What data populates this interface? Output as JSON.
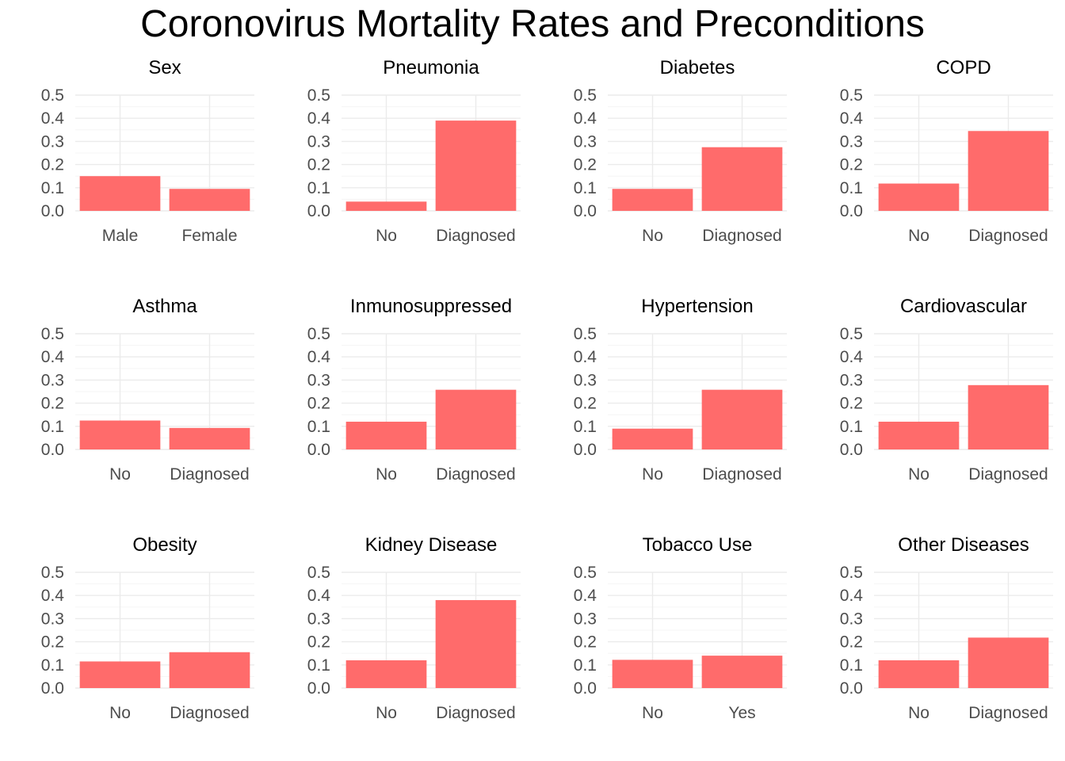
{
  "title": "Coronovirus Mortality Rates and Preconditions",
  "colors": {
    "bar": "#ff6b6b",
    "grid_major": "#ebebeb",
    "grid_minor": "#f5f5f5",
    "tick_text": "#4d4d4d",
    "title_text": "#000000"
  },
  "chart_data": [
    {
      "type": "bar",
      "title": "Sex",
      "categories": [
        "Male",
        "Female"
      ],
      "values": [
        0.15,
        0.095
      ],
      "ylim": [
        0,
        0.5
      ],
      "yticks": [
        "0.0",
        "0.1",
        "0.2",
        "0.3",
        "0.4",
        "0.5"
      ]
    },
    {
      "type": "bar",
      "title": "Pneumonia",
      "categories": [
        "No",
        "Diagnosed"
      ],
      "values": [
        0.04,
        0.39
      ],
      "ylim": [
        0,
        0.5
      ],
      "yticks": [
        "0.0",
        "0.1",
        "0.2",
        "0.3",
        "0.4",
        "0.5"
      ]
    },
    {
      "type": "bar",
      "title": "Diabetes",
      "categories": [
        "No",
        "Diagnosed"
      ],
      "values": [
        0.095,
        0.275
      ],
      "ylim": [
        0,
        0.5
      ],
      "yticks": [
        "0.0",
        "0.1",
        "0.2",
        "0.3",
        "0.4",
        "0.5"
      ]
    },
    {
      "type": "bar",
      "title": "COPD",
      "categories": [
        "No",
        "Diagnosed"
      ],
      "values": [
        0.118,
        0.345
      ],
      "ylim": [
        0,
        0.5
      ],
      "yticks": [
        "0.0",
        "0.1",
        "0.2",
        "0.3",
        "0.4",
        "0.5"
      ]
    },
    {
      "type": "bar",
      "title": "Asthma",
      "categories": [
        "No",
        "Diagnosed"
      ],
      "values": [
        0.125,
        0.093
      ],
      "ylim": [
        0,
        0.5
      ],
      "yticks": [
        "0.0",
        "0.1",
        "0.2",
        "0.3",
        "0.4",
        "0.5"
      ]
    },
    {
      "type": "bar",
      "title": "Inmunosuppressed",
      "categories": [
        "No",
        "Diagnosed"
      ],
      "values": [
        0.12,
        0.258
      ],
      "ylim": [
        0,
        0.5
      ],
      "yticks": [
        "0.0",
        "0.1",
        "0.2",
        "0.3",
        "0.4",
        "0.5"
      ]
    },
    {
      "type": "bar",
      "title": "Hypertension",
      "categories": [
        "No",
        "Diagnosed"
      ],
      "values": [
        0.09,
        0.258
      ],
      "ylim": [
        0,
        0.5
      ],
      "yticks": [
        "0.0",
        "0.1",
        "0.2",
        "0.3",
        "0.4",
        "0.5"
      ]
    },
    {
      "type": "bar",
      "title": "Cardiovascular",
      "categories": [
        "No",
        "Diagnosed"
      ],
      "values": [
        0.12,
        0.278
      ],
      "ylim": [
        0,
        0.5
      ],
      "yticks": [
        "0.0",
        "0.1",
        "0.2",
        "0.3",
        "0.4",
        "0.5"
      ]
    },
    {
      "type": "bar",
      "title": "Obesity",
      "categories": [
        "No",
        "Diagnosed"
      ],
      "values": [
        0.115,
        0.155
      ],
      "ylim": [
        0,
        0.5
      ],
      "yticks": [
        "0.0",
        "0.1",
        "0.2",
        "0.3",
        "0.4",
        "0.5"
      ]
    },
    {
      "type": "bar",
      "title": "Kidney Disease",
      "categories": [
        "No",
        "Diagnosed"
      ],
      "values": [
        0.12,
        0.38
      ],
      "ylim": [
        0,
        0.5
      ],
      "yticks": [
        "0.0",
        "0.1",
        "0.2",
        "0.3",
        "0.4",
        "0.5"
      ]
    },
    {
      "type": "bar",
      "title": "Tobacco Use",
      "categories": [
        "No",
        "Yes"
      ],
      "values": [
        0.122,
        0.14
      ],
      "ylim": [
        0,
        0.5
      ],
      "yticks": [
        "0.0",
        "0.1",
        "0.2",
        "0.3",
        "0.4",
        "0.5"
      ]
    },
    {
      "type": "bar",
      "title": "Other Diseases",
      "categories": [
        "No",
        "Diagnosed"
      ],
      "values": [
        0.12,
        0.218
      ],
      "ylim": [
        0,
        0.5
      ],
      "yticks": [
        "0.0",
        "0.1",
        "0.2",
        "0.3",
        "0.4",
        "0.5"
      ]
    }
  ]
}
